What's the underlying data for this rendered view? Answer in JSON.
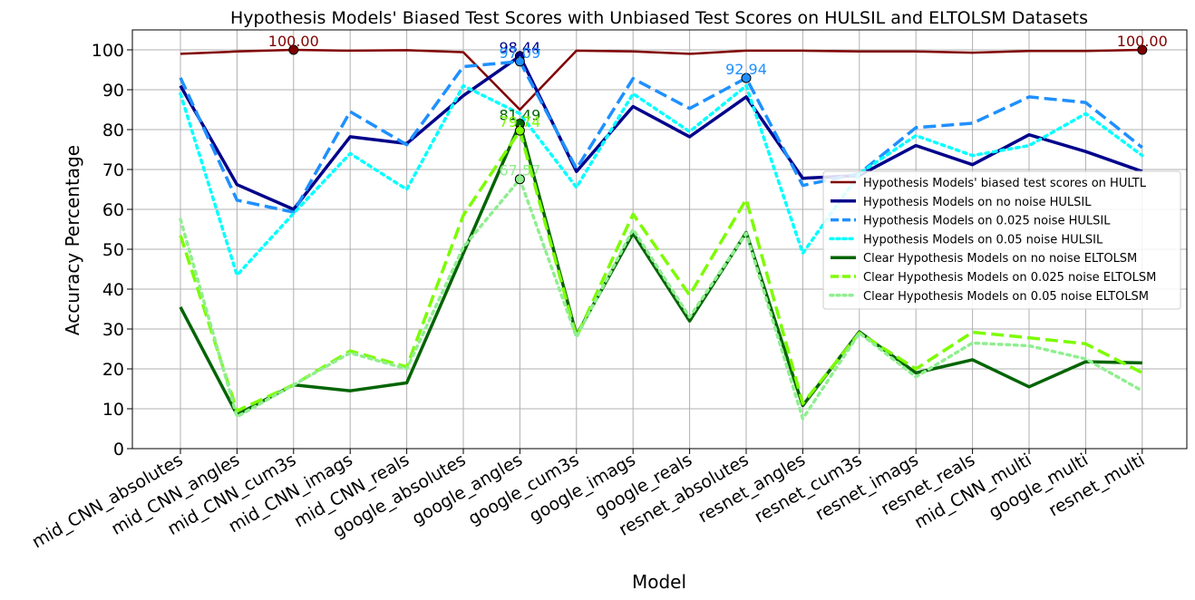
{
  "chart_data": {
    "type": "line",
    "title": "Hypothesis Models' Biased Test Scores with Unbiased Test Scores on HULSIL and ELTOLSM Datasets",
    "xlabel": "Model",
    "ylabel": "Accuracy Percentage",
    "ylim": [
      0,
      105
    ],
    "yticks": [
      0,
      10,
      20,
      30,
      40,
      50,
      60,
      70,
      80,
      90,
      100
    ],
    "grid": true,
    "legend_position": "center-right",
    "categories": [
      "mid_CNN_absolutes",
      "mid_CNN_angles",
      "mid_CNN_cum3s",
      "mid_CNN_imags",
      "mid_CNN_reals",
      "google_absolutes",
      "google_angles",
      "google_cum3s",
      "google_imags",
      "google_reals",
      "resnet_absolutes",
      "resnet_angles",
      "resnet_cum3s",
      "resnet_imags",
      "resnet_reals",
      "mid_CNN_multi",
      "google_multi",
      "resnet_multi"
    ],
    "series": [
      {
        "name": "Hypothesis Models' biased test scores on HULTL",
        "color": "#800000",
        "dash": "solid",
        "width": 2.5,
        "values": [
          99.0,
          99.6,
          100.0,
          99.8,
          99.9,
          99.4,
          85.0,
          99.8,
          99.6,
          99.0,
          99.8,
          99.8,
          99.6,
          99.6,
          99.3,
          99.7,
          99.7,
          100.0
        ],
        "markers": [
          {
            "index": 2,
            "label": "100.00"
          },
          {
            "index": 17,
            "label": "100.00"
          }
        ]
      },
      {
        "name": "Hypothesis Models on no noise HULSIL",
        "color": "#00008b",
        "dash": "solid",
        "width": 3.5,
        "values": [
          91.0,
          66.2,
          60.0,
          78.2,
          76.5,
          88.5,
          98.44,
          69.5,
          85.8,
          78.2,
          88.2,
          67.8,
          68.5,
          76.0,
          71.2,
          78.7,
          74.5,
          69.5
        ],
        "markers": [
          {
            "index": 6,
            "label": "98.44"
          }
        ]
      },
      {
        "name": "Hypothesis Models on 0.025 noise HULSIL",
        "color": "#1e90ff",
        "dash": "dashed",
        "width": 3.5,
        "values": [
          93.0,
          62.3,
          59.3,
          84.5,
          76.2,
          95.8,
          97.09,
          70.2,
          92.8,
          85.3,
          92.94,
          66.0,
          69.0,
          80.5,
          81.6,
          88.2,
          86.8,
          75.5
        ],
        "markers": [
          {
            "index": 6,
            "label": "97.09"
          },
          {
            "index": 10,
            "label": "92.94"
          }
        ]
      },
      {
        "name": "Hypothesis Models on 0.05 noise HULSIL",
        "color": "#00ffff",
        "dash": "dotted",
        "width": 3.5,
        "values": [
          89.0,
          43.5,
          59.0,
          74.0,
          65.0,
          91.0,
          84.0,
          65.5,
          89.0,
          79.5,
          91.0,
          49.0,
          69.0,
          78.5,
          73.5,
          76.0,
          84.0,
          73.5
        ],
        "markers": []
      },
      {
        "name": "Clear Hypothesis Models on no noise ELTOLSM",
        "color": "#006400",
        "dash": "solid",
        "width": 3.5,
        "values": [
          35.5,
          8.5,
          16.0,
          14.5,
          16.5,
          49.0,
          81.49,
          28.5,
          54.0,
          32.0,
          54.2,
          10.8,
          29.3,
          19.0,
          22.3,
          15.5,
          21.8,
          21.5
        ],
        "markers": [
          {
            "index": 6,
            "label": "81.49"
          }
        ]
      },
      {
        "name": "Clear Hypothesis Models on 0.025 noise ELTOLSM",
        "color": "#7cfc00",
        "dash": "dashed",
        "width": 3.5,
        "values": [
          53.5,
          9.5,
          16.0,
          24.5,
          20.5,
          58.5,
          79.74,
          28.0,
          58.8,
          38.5,
          62.5,
          11.3,
          29.0,
          20.0,
          29.2,
          27.8,
          26.3,
          19.0
        ],
        "markers": [
          {
            "index": 6,
            "label": "79.74"
          }
        ]
      },
      {
        "name": "Clear Hypothesis Models on 0.05 noise ELTOLSM",
        "color": "#90ee90",
        "dash": "dotted",
        "width": 3.5,
        "values": [
          57.5,
          8.0,
          16.0,
          24.0,
          20.0,
          50.5,
          67.57,
          28.0,
          55.0,
          33.0,
          54.0,
          7.5,
          29.0,
          18.0,
          26.5,
          25.8,
          22.5,
          14.5
        ],
        "markers": [
          {
            "index": 6,
            "label": "67.57"
          }
        ]
      }
    ]
  }
}
